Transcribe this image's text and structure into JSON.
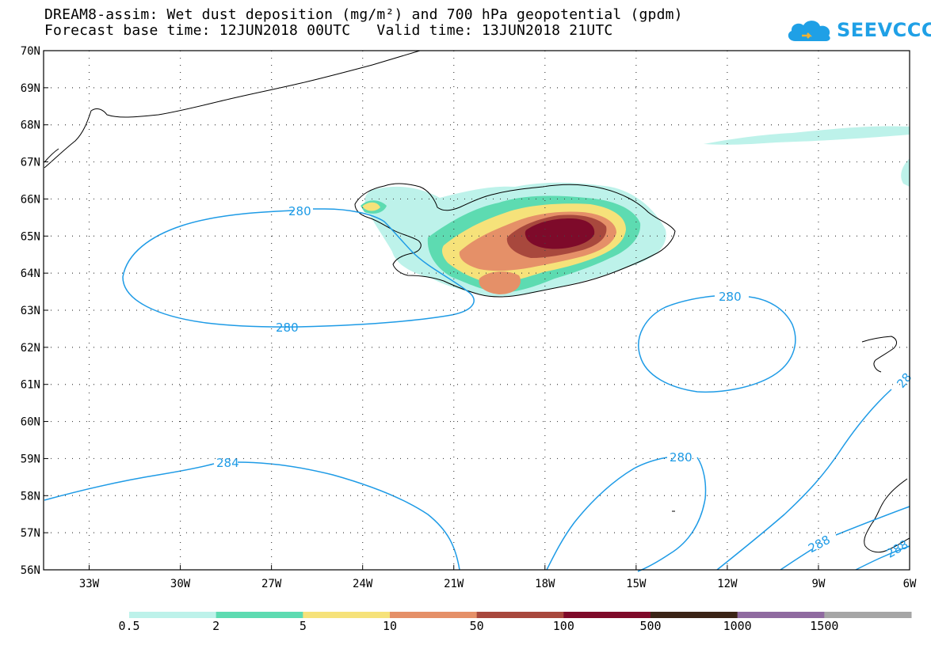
{
  "title": {
    "line1": "DREAM8-assim: Wet dust deposition (mg/m²) and 700 hPa geopotential (gpdm)",
    "line2": "Forecast base time: 12JUN2018 00UTC   Valid time: 13JUN2018 21UTC"
  },
  "logo": {
    "text": "SEEVCCC",
    "icon": "cloud-icon",
    "color": "#1fa0e6"
  },
  "map": {
    "lon_range": [
      -34.5,
      -6
    ],
    "lat_range": [
      56,
      70
    ],
    "lat_ticks": [
      "70N",
      "69N",
      "68N",
      "67N",
      "66N",
      "65N",
      "64N",
      "63N",
      "62N",
      "61N",
      "60N",
      "59N",
      "58N",
      "57N",
      "56N"
    ],
    "lon_ticks": [
      "33W",
      "30W",
      "27W",
      "24W",
      "21W",
      "18W",
      "15W",
      "12W",
      "9W",
      "6W"
    ],
    "grid": "dotted"
  },
  "contours": {
    "color": "#1e9be6",
    "labels": [
      "280",
      "280",
      "280",
      "284",
      "280",
      "288",
      "28",
      "288"
    ]
  },
  "legend": {
    "colors": [
      "#bdf2ea",
      "#5ddbb1",
      "#f6e27a",
      "#e59068",
      "#a8483d",
      "#7e0a2a",
      "#3b2416",
      "#8f6aa0",
      "#a6a6a6"
    ],
    "labels": [
      "0.5",
      "2",
      "5",
      "10",
      "50",
      "100",
      "500",
      "1000",
      "1500"
    ]
  }
}
